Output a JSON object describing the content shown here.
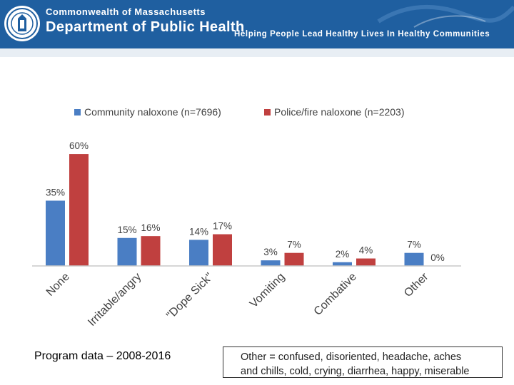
{
  "header": {
    "org_line1": "Commonwealth of Massachusetts",
    "org_line2": "Department of Public Health",
    "tagline": "Helping People Lead Healthy Lives In Healthy Communities",
    "seal_icon": "state-seal-icon",
    "banner_color": "#1f5fa0"
  },
  "chart_data": {
    "type": "bar",
    "categories": [
      "None",
      "Irritable/angry",
      "\"Dope Sick\"",
      "Vomiting",
      "Combative",
      "Other"
    ],
    "series": [
      {
        "name": "Community naloxone (n=7696)",
        "color": "#4a7ec4",
        "values": [
          35,
          15,
          14,
          3,
          2,
          7
        ],
        "labels": [
          "35%",
          "15%",
          "14%",
          "3%",
          "2%",
          "7%"
        ]
      },
      {
        "name": "Police/fire naloxone (n=2203)",
        "color": "#c0403f",
        "values": [
          60,
          16,
          17,
          7,
          4,
          0
        ],
        "labels": [
          "60%",
          "16%",
          "17%",
          "7%",
          "4%",
          "0%"
        ]
      }
    ],
    "ylim": [
      0,
      65
    ],
    "xlabel": "",
    "ylabel": "",
    "grid": false,
    "legend_position": "top"
  },
  "footer": {
    "source": "Program data – 2008-2016",
    "note_line1": "Other = confused, disoriented, headache, aches",
    "note_line2": "and chills, cold, crying, diarrhea, happy, miserable"
  }
}
